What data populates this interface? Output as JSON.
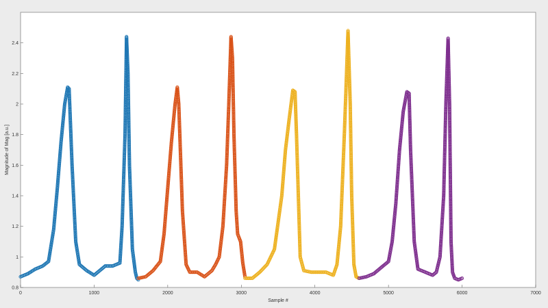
{
  "chart_data": {
    "type": "scatter",
    "title": "",
    "xlabel": "Sample #",
    "ylabel": "Magnitude of Mag [a.u.]",
    "xlim": [
      0,
      7000
    ],
    "ylim": [
      0.8,
      2.6
    ],
    "xticks": [
      0,
      1000,
      2000,
      3000,
      4000,
      5000,
      6000,
      7000
    ],
    "yticks": [
      0.8,
      1.0,
      1.2,
      1.4,
      1.6,
      1.8,
      2.0,
      2.2,
      2.4
    ],
    "xtick_labels": [
      "0",
      "1000",
      "2000",
      "3000",
      "4000",
      "5000",
      "6000",
      "7000"
    ],
    "ytick_labels": [
      "0.8",
      "1",
      "1.2",
      "1.4",
      "1.6",
      "1.8",
      "2",
      "2.2",
      "2.4"
    ],
    "grid": false,
    "marker": "circle",
    "series": [
      {
        "color": "#1f77b4",
        "x": [
          0,
          100,
          200,
          300,
          380,
          450,
          500,
          550,
          600,
          640,
          660,
          700,
          750,
          800,
          900,
          1000,
          1050,
          1100,
          1150,
          1200,
          1250,
          1300,
          1350,
          1380,
          1420,
          1440,
          1460,
          1480,
          1520,
          1560,
          1580,
          1600
        ],
        "y": [
          0.87,
          0.89,
          0.92,
          0.94,
          0.97,
          1.18,
          1.45,
          1.75,
          2.0,
          2.11,
          2.1,
          1.6,
          1.1,
          0.95,
          0.91,
          0.88,
          0.9,
          0.92,
          0.94,
          0.94,
          0.94,
          0.95,
          0.96,
          1.2,
          1.8,
          2.44,
          2.2,
          1.6,
          1.05,
          0.9,
          0.86,
          0.85
        ]
      },
      {
        "color": "#d95319",
        "x": [
          1600,
          1700,
          1800,
          1900,
          1950,
          2000,
          2050,
          2100,
          2130,
          2150,
          2200,
          2250,
          2300,
          2400,
          2500,
          2550,
          2600,
          2650,
          2700,
          2750,
          2800,
          2830,
          2860,
          2880,
          2900,
          2930,
          2950,
          2990,
          3020,
          3050
        ],
        "y": [
          0.86,
          0.87,
          0.91,
          0.97,
          1.15,
          1.45,
          1.75,
          2.0,
          2.11,
          2.0,
          1.3,
          0.95,
          0.9,
          0.9,
          0.87,
          0.89,
          0.91,
          0.95,
          1.0,
          1.2,
          1.6,
          2.0,
          2.44,
          2.3,
          1.8,
          1.3,
          1.15,
          1.1,
          0.96,
          0.87
        ]
      },
      {
        "color": "#edb120",
        "x": [
          3050,
          3150,
          3250,
          3350,
          3450,
          3550,
          3600,
          3650,
          3700,
          3730,
          3750,
          3800,
          3850,
          3950,
          4050,
          4150,
          4250,
          4300,
          4350,
          4400,
          4430,
          4450,
          4480,
          4500,
          4530,
          4560,
          4600
        ],
        "y": [
          0.86,
          0.86,
          0.9,
          0.95,
          1.05,
          1.4,
          1.7,
          1.9,
          2.09,
          2.08,
          1.8,
          1.0,
          0.91,
          0.9,
          0.9,
          0.9,
          0.88,
          0.95,
          1.2,
          1.8,
          2.2,
          2.48,
          2.0,
          1.4,
          0.95,
          0.87,
          0.86
        ]
      },
      {
        "color": "#7e2f8e",
        "x": [
          4600,
          4700,
          4800,
          4900,
          5000,
          5050,
          5100,
          5150,
          5200,
          5250,
          5280,
          5300,
          5350,
          5400,
          5500,
          5600,
          5650,
          5700,
          5750,
          5780,
          5810,
          5830,
          5850,
          5870,
          5900,
          5950,
          6000
        ],
        "y": [
          0.86,
          0.87,
          0.89,
          0.93,
          0.97,
          1.1,
          1.35,
          1.7,
          1.95,
          2.08,
          2.07,
          1.7,
          1.1,
          0.92,
          0.9,
          0.88,
          0.9,
          1.0,
          1.4,
          2.0,
          2.43,
          2.0,
          1.1,
          0.9,
          0.86,
          0.85,
          0.86
        ]
      }
    ]
  }
}
